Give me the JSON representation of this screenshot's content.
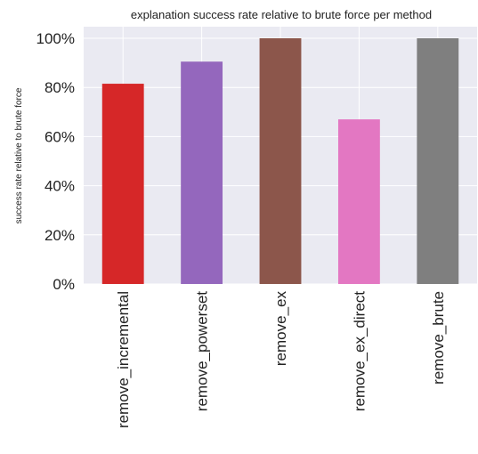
{
  "chart_data": {
    "type": "bar",
    "title": "explanation success rate relative to brute force per method",
    "xlabel": "",
    "ylabel": "success rate relative to brute force",
    "categories": [
      "remove_incremental",
      "remove_powerset",
      "remove_ex",
      "remove_ex_direct",
      "remove_brute"
    ],
    "values": [
      0.815,
      0.905,
      1.0,
      0.67,
      1.0
    ],
    "colors": [
      "#d62728",
      "#9467bd",
      "#8c564b",
      "#e377c2",
      "#7f7f7f"
    ],
    "ylim": [
      0,
      1.0
    ],
    "yticks": [
      0,
      0.2,
      0.4,
      0.6,
      0.8,
      1.0
    ],
    "ytick_labels": [
      "0%",
      "20%",
      "40%",
      "60%",
      "80%",
      "100%"
    ],
    "grid": true,
    "background": "#eaeaf2",
    "grid_color": "#ffffff"
  }
}
